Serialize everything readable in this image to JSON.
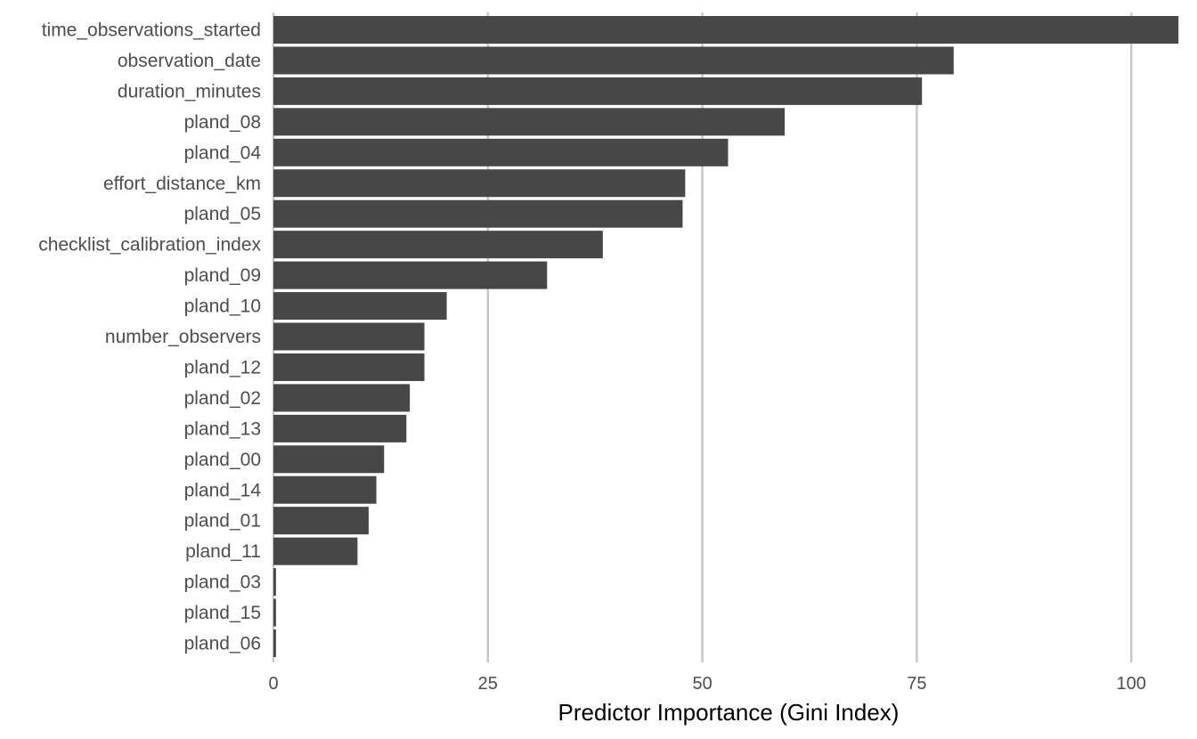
{
  "chart_data": {
    "type": "bar",
    "orientation": "horizontal",
    "title": "",
    "xlabel": "Predictor Importance (Gini Index)",
    "ylabel": "",
    "xlim": [
      0,
      106
    ],
    "x_ticks": [
      0,
      25,
      50,
      75,
      100
    ],
    "grid": "vertical major gridlines",
    "legend": "none",
    "bar_color": "#474747",
    "grid_color": "#c8c8c8",
    "categories": [
      "time_observations_started",
      "observation_date",
      "duration_minutes",
      "pland_08",
      "pland_04",
      "effort_distance_km",
      "pland_05",
      "checklist_calibration_index",
      "pland_09",
      "pland_10",
      "number_observers",
      "pland_12",
      "pland_02",
      "pland_13",
      "pland_00",
      "pland_14",
      "pland_01",
      "pland_11",
      "pland_03",
      "pland_15",
      "pland_06"
    ],
    "values": [
      105.5,
      79.3,
      75.6,
      59.6,
      53.0,
      48.0,
      47.7,
      38.4,
      31.9,
      20.2,
      17.6,
      17.6,
      15.9,
      15.5,
      12.9,
      12.0,
      11.1,
      9.8,
      0.3,
      0.3,
      0.3
    ]
  }
}
